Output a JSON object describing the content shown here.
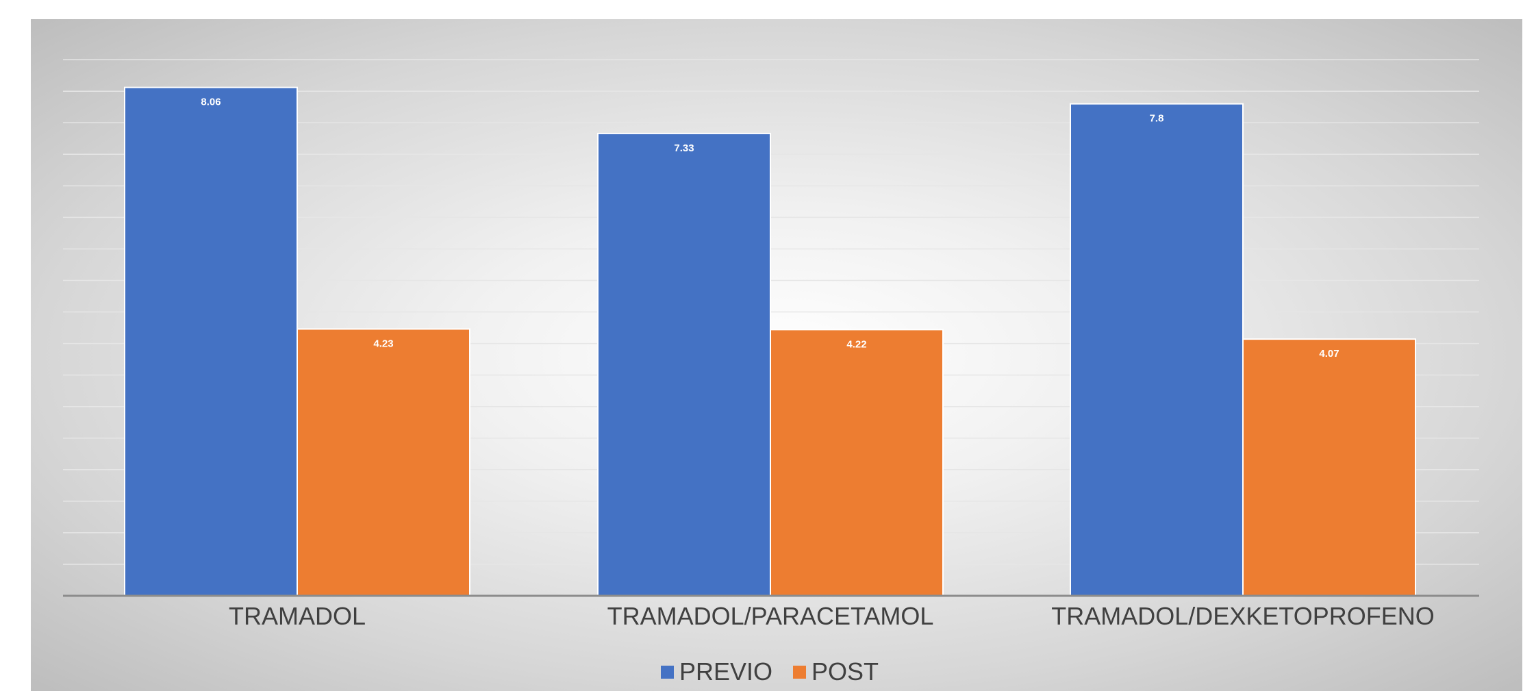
{
  "chart_data": {
    "type": "bar",
    "categories": [
      "TRAMADOL",
      "TRAMADOL/PARACETAMOL",
      "TRAMADOL/DEXKETOPROFENO"
    ],
    "series": [
      {
        "name": "PREVIO",
        "values": [
          8.06,
          7.33,
          7.8
        ],
        "labels": [
          "8.06",
          "7.33",
          "7.8"
        ],
        "color": "#4472C4"
      },
      {
        "name": "POST",
        "values": [
          4.23,
          4.22,
          4.07
        ],
        "labels": [
          "4.23",
          "4.22",
          "4.07"
        ],
        "color": "#ED7D31"
      }
    ],
    "ylim": [
      0,
      8.5
    ],
    "grid": true,
    "legend_position": "bottom",
    "title": "",
    "xlabel": "",
    "ylabel": ""
  }
}
